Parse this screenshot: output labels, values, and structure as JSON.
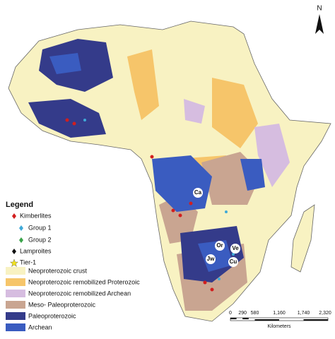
{
  "north_arrow": {
    "label": "N"
  },
  "legend": {
    "title": "Legend",
    "items": [
      {
        "label": "Kimberlites"
      },
      {
        "label": "Group 1"
      },
      {
        "label": "Group 2"
      },
      {
        "label": "Lamproites"
      },
      {
        "label": "Tier-1"
      },
      {
        "label": "Neoproterozoic crust"
      },
      {
        "label": "Neoproterozoic remobilized Proterozoic"
      },
      {
        "label": "Neoproterozoic remobilized Archean"
      },
      {
        "label": "Meso- Paleoproterozoic"
      },
      {
        "label": "Paleoproterozoic"
      },
      {
        "label": "Archean"
      }
    ]
  },
  "site_labels": [
    "Ca",
    "Or",
    "Ve",
    "Jw",
    "Cu"
  ],
  "scale_bar": {
    "ticks": [
      "0",
      "290",
      "580",
      "1,160",
      "1,740",
      "2,320"
    ],
    "unit": "Kilometers"
  }
}
